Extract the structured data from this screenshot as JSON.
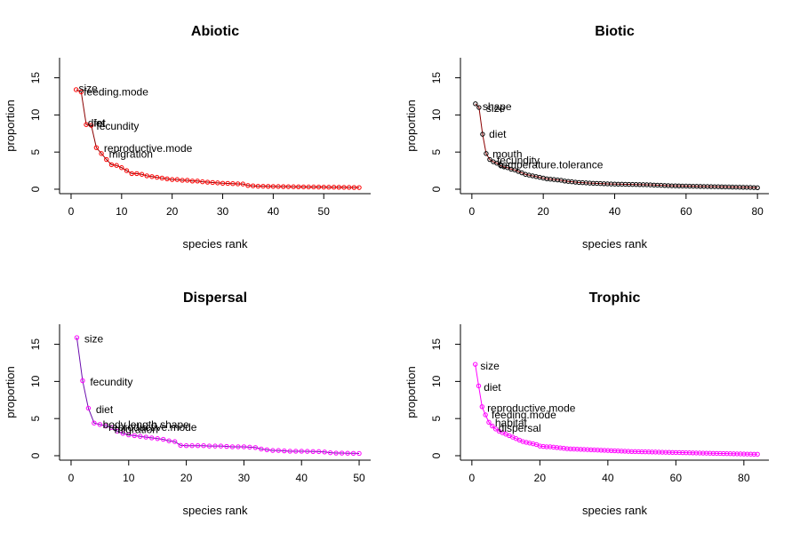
{
  "chart_data": [
    {
      "type": "line",
      "title": "Abiotic",
      "xlabel": "species rank",
      "ylabel": "proportion",
      "xlim": [
        0,
        57
      ],
      "ylim": [
        0,
        15
      ],
      "xticks": [
        0,
        10,
        20,
        30,
        40,
        50
      ],
      "yticks": [
        0,
        5,
        10,
        15
      ],
      "grid": false,
      "line_color": "#8B0000",
      "marker_color": "#FF0000",
      "series": [
        {
          "x": [
            1,
            2,
            3,
            4,
            5,
            6,
            7,
            8,
            9,
            10,
            11,
            12,
            13,
            14,
            15,
            16,
            17,
            18,
            19,
            20,
            21,
            22,
            23,
            24,
            25,
            26,
            27,
            28,
            29,
            30,
            31,
            32,
            33,
            34,
            35,
            36,
            37,
            38,
            39,
            40,
            41,
            42,
            43,
            44,
            45,
            46,
            47,
            48,
            49,
            50,
            51,
            52,
            53,
            54,
            55,
            56,
            57
          ],
          "values": [
            13.4,
            13.1,
            8.7,
            8.6,
            5.6,
            4.8,
            4.0,
            3.3,
            3.2,
            2.9,
            2.5,
            2.1,
            2.1,
            2.0,
            1.8,
            1.7,
            1.6,
            1.5,
            1.4,
            1.3,
            1.3,
            1.2,
            1.2,
            1.1,
            1.1,
            1.0,
            0.95,
            0.9,
            0.85,
            0.8,
            0.78,
            0.75,
            0.72,
            0.7,
            0.5,
            0.45,
            0.4,
            0.4,
            0.38,
            0.37,
            0.36,
            0.35,
            0.34,
            0.33,
            0.32,
            0.31,
            0.3,
            0.3,
            0.29,
            0.28,
            0.27,
            0.27,
            0.26,
            0.25,
            0.24,
            0.23,
            0.22
          ]
        }
      ],
      "annotations": [
        {
          "text": "size",
          "x": 1.5,
          "y": 13.5
        },
        {
          "text": "feeding.mode",
          "x": 2.5,
          "y": 13.0
        },
        {
          "text": "diet",
          "x": 3.3,
          "y": 8.8
        },
        {
          "text": "fet",
          "x": 4.5,
          "y": 8.8
        },
        {
          "text": "fecundity",
          "x": 5.0,
          "y": 8.4
        },
        {
          "text": "reproductive.mode",
          "x": 6.5,
          "y": 5.4
        },
        {
          "text": "migration",
          "x": 7.5,
          "y": 4.6
        }
      ]
    },
    {
      "type": "line",
      "title": "Biotic",
      "xlabel": "species rank",
      "ylabel": "proportion",
      "xlim": [
        0,
        80
      ],
      "ylim": [
        0,
        15
      ],
      "xticks": [
        0,
        20,
        40,
        60,
        80
      ],
      "yticks": [
        0,
        5,
        10,
        15
      ],
      "grid": false,
      "line_color": "#8B0000",
      "marker_color": "#000000",
      "series": [
        {
          "x": [
            1,
            2,
            3,
            4,
            5,
            6,
            7,
            8,
            9,
            10,
            11,
            12,
            13,
            14,
            15,
            16,
            17,
            18,
            19,
            20,
            21,
            22,
            23,
            24,
            25,
            26,
            27,
            28,
            29,
            30,
            31,
            32,
            33,
            34,
            35,
            36,
            37,
            38,
            39,
            40,
            41,
            42,
            43,
            44,
            45,
            46,
            47,
            48,
            49,
            50,
            51,
            52,
            53,
            54,
            55,
            56,
            57,
            58,
            59,
            60,
            61,
            62,
            63,
            64,
            65,
            66,
            67,
            68,
            69,
            70,
            71,
            72,
            73,
            74,
            75,
            76,
            77,
            78,
            79,
            80
          ],
          "values": [
            11.5,
            11.0,
            7.4,
            4.8,
            4.0,
            3.7,
            3.5,
            3.2,
            3.0,
            2.9,
            2.7,
            2.6,
            2.4,
            2.2,
            2.0,
            1.9,
            1.8,
            1.7,
            1.6,
            1.5,
            1.4,
            1.35,
            1.3,
            1.25,
            1.2,
            1.1,
            1.05,
            1.0,
            0.95,
            0.9,
            0.88,
            0.85,
            0.82,
            0.8,
            0.78,
            0.76,
            0.74,
            0.72,
            0.7,
            0.69,
            0.68,
            0.67,
            0.66,
            0.65,
            0.64,
            0.63,
            0.62,
            0.61,
            0.6,
            0.58,
            0.56,
            0.54,
            0.52,
            0.5,
            0.48,
            0.46,
            0.45,
            0.44,
            0.43,
            0.42,
            0.41,
            0.4,
            0.39,
            0.38,
            0.37,
            0.36,
            0.35,
            0.34,
            0.33,
            0.32,
            0.31,
            0.3,
            0.29,
            0.28,
            0.27,
            0.26,
            0.25,
            0.24,
            0.22,
            0.2
          ]
        }
      ],
      "annotations": [
        {
          "text": "shape",
          "x": 3.0,
          "y": 11.0
        },
        {
          "text": "size",
          "x": 4.0,
          "y": 10.8
        },
        {
          "text": "diet",
          "x": 4.8,
          "y": 7.3
        },
        {
          "text": "mouth",
          "x": 5.8,
          "y": 4.6
        },
        {
          "text": "fecundity",
          "x": 7.0,
          "y": 3.8
        },
        {
          "text": "temperature.tolerance",
          "x": 7.5,
          "y": 3.2
        }
      ]
    },
    {
      "type": "line",
      "title": "Dispersal",
      "xlabel": "species rank",
      "ylabel": "proportion",
      "xlim": [
        0,
        50
      ],
      "ylim": [
        0,
        15
      ],
      "xticks": [
        0,
        10,
        20,
        30,
        40,
        50
      ],
      "yticks": [
        0,
        5,
        10,
        15
      ],
      "grid": false,
      "line_color": "#6A0DAD",
      "marker_color": "#FF00FF",
      "series": [
        {
          "x": [
            1,
            2,
            3,
            4,
            5,
            6,
            7,
            8,
            9,
            10,
            11,
            12,
            13,
            14,
            15,
            16,
            17,
            18,
            19,
            20,
            21,
            22,
            23,
            24,
            25,
            26,
            27,
            28,
            29,
            30,
            31,
            32,
            33,
            34,
            35,
            36,
            37,
            38,
            39,
            40,
            41,
            42,
            43,
            44,
            45,
            46,
            47,
            48,
            49,
            50
          ],
          "values": [
            15.9,
            10.1,
            6.4,
            4.4,
            4.2,
            4.0,
            3.8,
            3.3,
            3.0,
            2.8,
            2.7,
            2.6,
            2.5,
            2.4,
            2.3,
            2.2,
            2.0,
            1.9,
            1.4,
            1.35,
            1.35,
            1.35,
            1.35,
            1.3,
            1.3,
            1.3,
            1.25,
            1.2,
            1.2,
            1.2,
            1.15,
            1.1,
            0.9,
            0.8,
            0.7,
            0.7,
            0.65,
            0.6,
            0.6,
            0.6,
            0.58,
            0.56,
            0.55,
            0.5,
            0.4,
            0.35,
            0.35,
            0.33,
            0.32,
            0.3
          ]
        }
      ],
      "annotations": [
        {
          "text": "size",
          "x": 2.3,
          "y": 15.6
        },
        {
          "text": "fecundity",
          "x": 3.3,
          "y": 9.8
        },
        {
          "text": "diet",
          "x": 4.3,
          "y": 6.1
        },
        {
          "text": "body.length.shape",
          "x": 5.5,
          "y": 4.1
        },
        {
          "text": "reproductive.mode",
          "x": 6.5,
          "y": 3.7
        },
        {
          "text": "migration",
          "x": 7.5,
          "y": 3.4
        }
      ]
    },
    {
      "type": "line",
      "title": "Trophic",
      "xlabel": "species rank",
      "ylabel": "proportion",
      "xlim": [
        0,
        84
      ],
      "ylim": [
        0,
        15
      ],
      "xticks": [
        0,
        20,
        40,
        60,
        80
      ],
      "yticks": [
        0,
        5,
        10,
        15
      ],
      "grid": false,
      "line_color": "#FF00FF",
      "marker_color": "#FF00FF",
      "series": [
        {
          "x": [
            1,
            2,
            3,
            4,
            5,
            6,
            7,
            8,
            9,
            10,
            11,
            12,
            13,
            14,
            15,
            16,
            17,
            18,
            19,
            20,
            21,
            22,
            23,
            24,
            25,
            26,
            27,
            28,
            29,
            30,
            31,
            32,
            33,
            34,
            35,
            36,
            37,
            38,
            39,
            40,
            41,
            42,
            43,
            44,
            45,
            46,
            47,
            48,
            49,
            50,
            51,
            52,
            53,
            54,
            55,
            56,
            57,
            58,
            59,
            60,
            61,
            62,
            63,
            64,
            65,
            66,
            67,
            68,
            69,
            70,
            71,
            72,
            73,
            74,
            75,
            76,
            77,
            78,
            79,
            80,
            81,
            82,
            83,
            84
          ],
          "values": [
            12.3,
            9.4,
            6.6,
            5.5,
            4.5,
            4.0,
            3.6,
            3.3,
            3.1,
            2.9,
            2.7,
            2.5,
            2.3,
            2.1,
            1.9,
            1.8,
            1.7,
            1.6,
            1.5,
            1.3,
            1.25,
            1.2,
            1.2,
            1.15,
            1.1,
            1.05,
            1.0,
            0.95,
            0.92,
            0.9,
            0.88,
            0.86,
            0.84,
            0.82,
            0.8,
            0.78,
            0.76,
            0.74,
            0.72,
            0.7,
            0.68,
            0.66,
            0.64,
            0.62,
            0.6,
            0.58,
            0.56,
            0.55,
            0.54,
            0.53,
            0.52,
            0.51,
            0.5,
            0.49,
            0.48,
            0.47,
            0.46,
            0.45,
            0.44,
            0.43,
            0.42,
            0.41,
            0.4,
            0.39,
            0.38,
            0.37,
            0.36,
            0.35,
            0.34,
            0.33,
            0.32,
            0.31,
            0.3,
            0.29,
            0.28,
            0.27,
            0.26,
            0.25,
            0.24,
            0.23,
            0.22,
            0.21,
            0.2,
            0.2
          ]
        }
      ],
      "annotations": [
        {
          "text": "size",
          "x": 2.5,
          "y": 12.0
        },
        {
          "text": "diet",
          "x": 3.5,
          "y": 9.1
        },
        {
          "text": "reproductive.mode",
          "x": 4.5,
          "y": 6.3
        },
        {
          "text": "feeding.mode",
          "x": 5.8,
          "y": 5.4
        },
        {
          "text": "habitat",
          "x": 6.8,
          "y": 4.3
        },
        {
          "text": "dispersal",
          "x": 7.8,
          "y": 3.6
        }
      ]
    }
  ]
}
